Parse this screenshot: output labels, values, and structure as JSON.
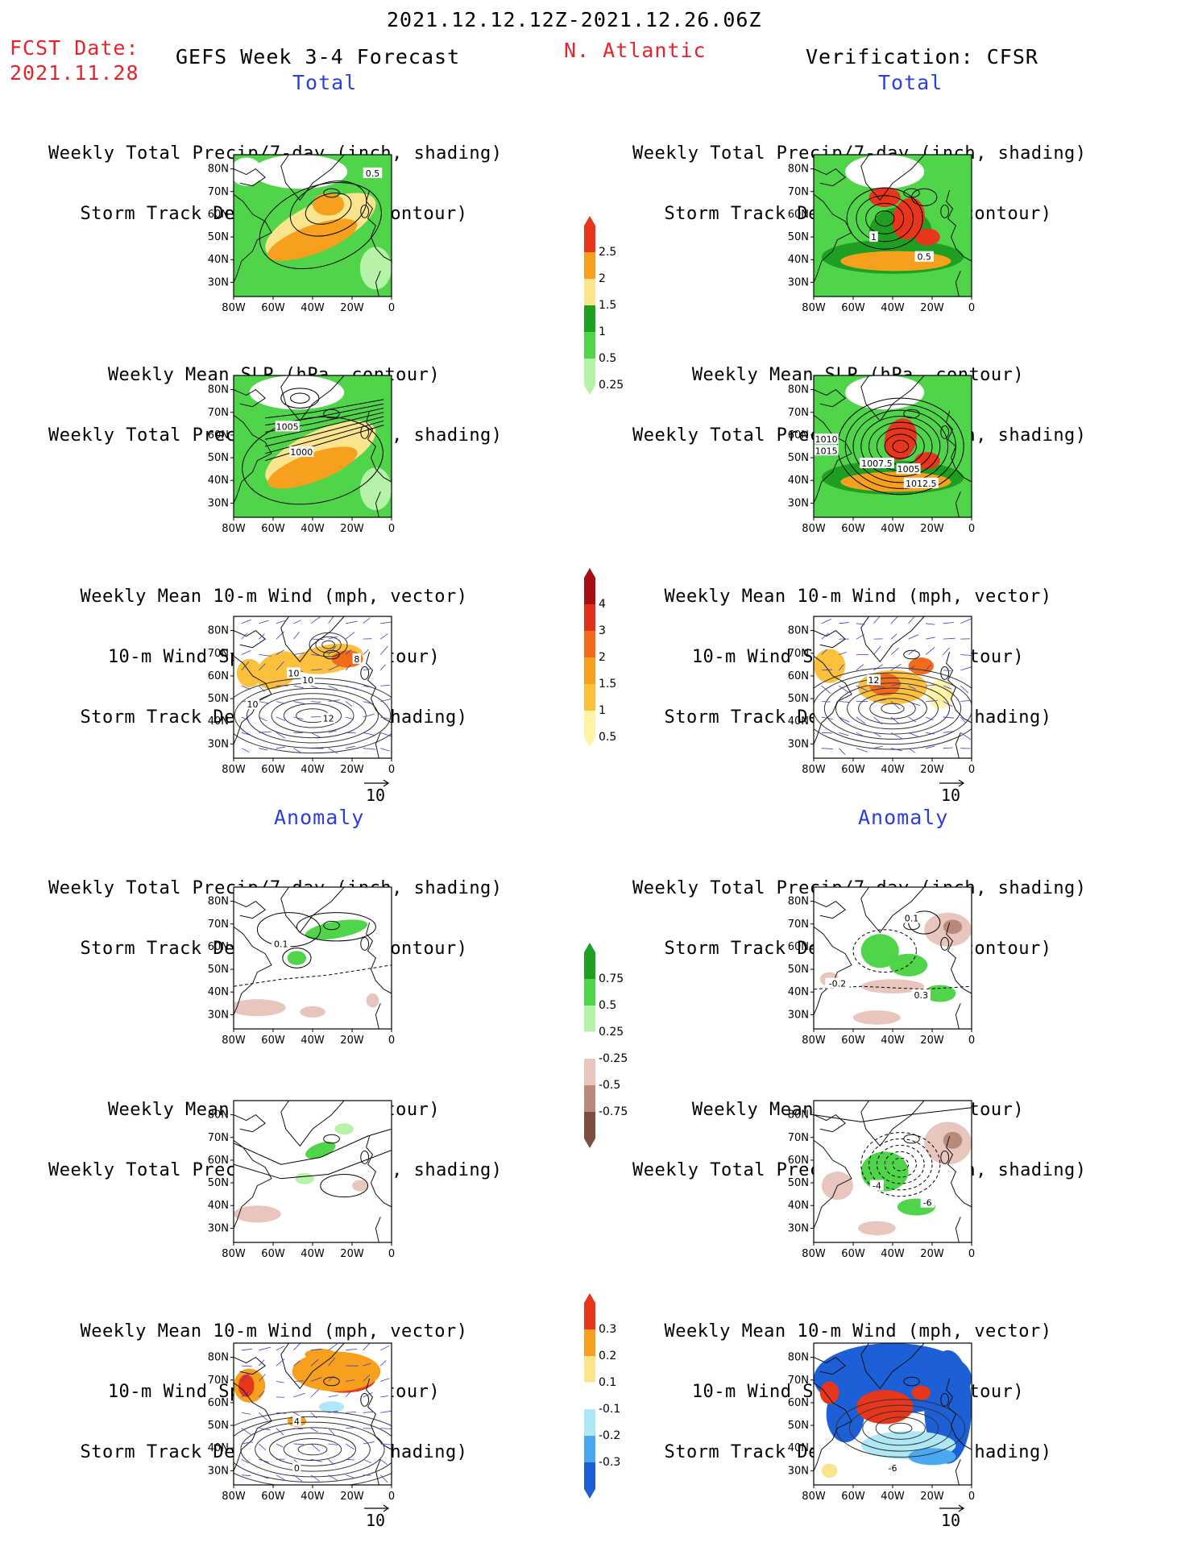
{
  "header": {
    "period": "2021.12.12.12Z-2021.12.26.06Z",
    "fcst_label": "FCST Date:",
    "fcst_date": "2021.11.28",
    "product": "GEFS Week 3-4 Forecast",
    "region": "N. Atlantic",
    "verification": "Verification: CFSR"
  },
  "sections": {
    "total": "Total",
    "anomaly": "Anomaly"
  },
  "titles": {
    "precip_storm": [
      "Weekly Total Precip/7-day (inch, shading)",
      "Storm Track Density/7-day (contour)"
    ],
    "slp_precip": [
      "Weekly Mean SLP (hPa, contour)",
      "Weekly Total Precip/7-day (inch, shading)"
    ],
    "wind_storm": [
      "Weekly Mean 10-m Wind (mph, vector)",
      "10-m Wind Speed (mph, contour)",
      "Storm Track Density/7-day (shading)"
    ]
  },
  "axes": {
    "lat_ticks": [
      "80N",
      "70N",
      "60N",
      "50N",
      "40N",
      "30N"
    ],
    "lon_ticks": [
      "80W",
      "60W",
      "40W",
      "20W",
      "0"
    ]
  },
  "vector_ref": "10",
  "colorbars": {
    "total_precip": {
      "labels": [
        "2.5",
        "2",
        "1.5",
        "1",
        "0.5",
        "0.25"
      ],
      "colors": [
        "#e8361c",
        "#f7a01d",
        "#fbe58c",
        "#1f9f22",
        "#4fd44a",
        "#b6f2a8"
      ]
    },
    "total_storm": {
      "labels": [
        "4",
        "3",
        "2",
        "1.5",
        "1",
        "0.5"
      ],
      "colors": [
        "#a50f15",
        "#e0301e",
        "#f26b1a",
        "#f7a01d",
        "#fbc03c",
        "#fff3a6"
      ]
    },
    "anom_precip": {
      "labels": [
        "0.75",
        "0.5",
        "0.25",
        "-0.25",
        "-0.5",
        "-0.75"
      ],
      "colors": [
        "#1f9f22",
        "#4fd44a",
        "#b6f2a8",
        "#ffffff",
        "#e8c6bd",
        "#b98a7c",
        "#7a4f40"
      ]
    },
    "anom_storm": {
      "labels": [
        "0.3",
        "0.2",
        "0.1",
        "-0.1",
        "-0.2",
        "-0.3"
      ],
      "colors": [
        "#e8361c",
        "#f7a01d",
        "#fbe58c",
        "#ffffff",
        "#aee8f5",
        "#4aa8f0",
        "#1c5fd6"
      ]
    }
  },
  "contour_labels": {
    "t1l": [
      "0.5"
    ],
    "t1r": [
      "1",
      "0.5"
    ],
    "t2l": [
      "1005",
      "1000"
    ],
    "t2r": [
      "1010",
      "1015",
      "1007.5",
      "1005",
      "1012.5"
    ],
    "t3l": [
      "10",
      "10",
      "10",
      "12",
      "8"
    ],
    "t3r": [
      "12"
    ],
    "a1l": [
      "0.1"
    ],
    "a1r": [
      "0.1",
      "-0.2",
      "0.3"
    ],
    "a2r": [
      "-4",
      "-6"
    ],
    "a3l": [
      "4",
      "0"
    ],
    "a3r": [
      "-6"
    ]
  }
}
